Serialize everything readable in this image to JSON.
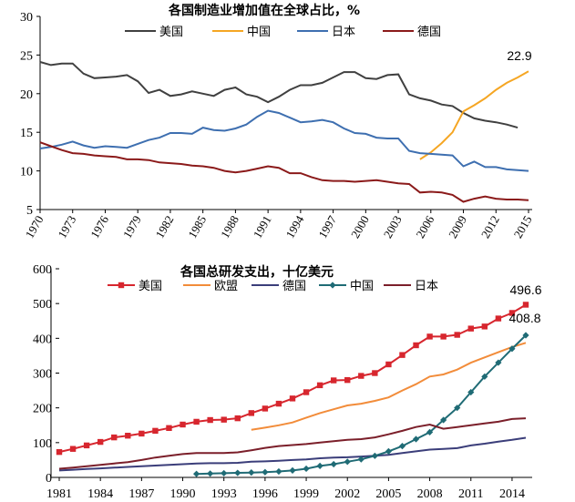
{
  "chart_data": [
    {
      "type": "line",
      "title": "各国制造业增加值在全球占比，%",
      "x": [
        1970,
        1971,
        1972,
        1973,
        1974,
        1975,
        1976,
        1977,
        1978,
        1979,
        1980,
        1981,
        1982,
        1983,
        1984,
        1985,
        1986,
        1987,
        1988,
        1989,
        1990,
        1991,
        1992,
        1993,
        1994,
        1995,
        1996,
        1997,
        1998,
        1999,
        2000,
        2001,
        2002,
        2003,
        2004,
        2005,
        2006,
        2007,
        2008,
        2009,
        2010,
        2011,
        2012,
        2013,
        2014,
        2015
      ],
      "x_ticks": [
        "1970",
        "1973",
        "1976",
        "1979",
        "1982",
        "1985",
        "1988",
        "1991",
        "1994",
        "1997",
        "2000",
        "2003",
        "2006",
        "2009",
        "2012",
        "2015"
      ],
      "ylim": [
        5,
        30
      ],
      "y_ticks": [
        "5",
        "10",
        "15",
        "20",
        "25",
        "30"
      ],
      "grid": false,
      "legend": "top",
      "annotation": "22.9",
      "series": [
        {
          "name": "美国",
          "color": "#404040",
          "values": [
            24.1,
            23.7,
            23.9,
            23.9,
            22.6,
            22.0,
            22.1,
            22.2,
            22.4,
            21.6,
            20.1,
            20.5,
            19.7,
            19.9,
            20.3,
            20.0,
            19.7,
            20.5,
            20.8,
            19.9,
            19.6,
            18.9,
            19.6,
            20.5,
            21.1,
            21.1,
            21.4,
            22.1,
            22.8,
            22.8,
            22.0,
            21.9,
            22.4,
            22.5,
            19.9,
            19.4,
            19.1,
            18.6,
            18.4,
            17.5,
            16.8,
            16.5,
            16.3,
            16.0,
            15.6,
            null
          ]
        },
        {
          "name": "中国",
          "color": "#F5A623",
          "values": [
            null,
            null,
            null,
            null,
            null,
            null,
            null,
            null,
            null,
            null,
            null,
            null,
            null,
            null,
            null,
            null,
            null,
            null,
            null,
            null,
            null,
            null,
            null,
            null,
            null,
            null,
            null,
            null,
            null,
            null,
            null,
            null,
            null,
            null,
            null,
            11.5,
            12.4,
            13.6,
            15.0,
            17.7,
            18.5,
            19.4,
            20.5,
            21.4,
            22.1,
            22.9
          ]
        },
        {
          "name": "日本",
          "color": "#3E6FB0",
          "values": [
            12.9,
            13.1,
            13.4,
            13.8,
            13.3,
            13.0,
            13.2,
            13.1,
            13.0,
            13.5,
            14.0,
            14.3,
            14.9,
            14.9,
            14.8,
            15.6,
            15.3,
            15.2,
            15.5,
            16.0,
            17.0,
            17.8,
            17.5,
            16.9,
            16.3,
            16.4,
            16.6,
            16.3,
            15.5,
            14.9,
            14.8,
            14.3,
            14.2,
            14.2,
            12.6,
            12.3,
            12.2,
            12.1,
            12.0,
            10.6,
            11.2,
            10.5,
            10.5,
            10.2,
            10.1,
            10.0
          ]
        },
        {
          "name": "德国",
          "color": "#8B1A1A",
          "values": [
            13.7,
            13.2,
            12.7,
            12.3,
            12.2,
            12.0,
            11.9,
            11.8,
            11.5,
            11.5,
            11.4,
            11.1,
            11.0,
            10.9,
            10.7,
            10.6,
            10.4,
            10.0,
            9.8,
            10.0,
            10.3,
            10.6,
            10.4,
            9.7,
            9.7,
            9.2,
            8.8,
            8.7,
            8.7,
            8.6,
            8.7,
            8.8,
            8.6,
            8.4,
            8.3,
            7.2,
            7.3,
            7.2,
            6.9,
            6.0,
            6.4,
            6.7,
            6.4,
            6.3,
            6.3,
            6.2
          ]
        }
      ]
    },
    {
      "type": "line",
      "title": "各国总研发支出，十亿美元",
      "x": [
        1981,
        1982,
        1983,
        1984,
        1985,
        1986,
        1987,
        1988,
        1989,
        1990,
        1991,
        1992,
        1993,
        1994,
        1995,
        1996,
        1997,
        1998,
        1999,
        2000,
        2001,
        2002,
        2003,
        2004,
        2005,
        2006,
        2007,
        2008,
        2009,
        2010,
        2011,
        2012,
        2013,
        2014,
        2015
      ],
      "x_ticks": [
        "1981",
        "1984",
        "1987",
        "1990",
        "1993",
        "1996",
        "1999",
        "2002",
        "2005",
        "2008",
        "2011",
        "2014"
      ],
      "ylim": [
        0,
        600
      ],
      "y_ticks": [
        "0",
        "100",
        "200",
        "300",
        "400",
        "500",
        "600"
      ],
      "grid": false,
      "legend": "top",
      "annotations": [
        "496.6",
        "408.8"
      ],
      "series": [
        {
          "name": "美国",
          "color": "#D7262E",
          "marker": "square",
          "values": [
            73,
            82,
            92,
            102,
            115,
            120,
            126,
            134,
            142,
            152,
            160,
            165,
            166,
            170,
            185,
            198,
            212,
            227,
            245,
            265,
            279,
            280,
            292,
            300,
            325,
            352,
            380,
            405,
            405,
            410,
            428,
            434,
            457,
            473,
            496.6
          ]
        },
        {
          "name": "欧盟",
          "color": "#F28C3A",
          "marker": "none",
          "values": [
            null,
            null,
            null,
            null,
            null,
            null,
            null,
            null,
            null,
            null,
            null,
            null,
            null,
            null,
            137,
            143,
            150,
            158,
            172,
            185,
            196,
            207,
            212,
            220,
            230,
            250,
            268,
            290,
            296,
            310,
            330,
            345,
            360,
            375,
            387
          ]
        },
        {
          "name": "德国",
          "color": "#3B3E7A",
          "marker": "none",
          "values": [
            20,
            22,
            24,
            26,
            28,
            30,
            32,
            34,
            36,
            38,
            40,
            41,
            41,
            42,
            45,
            46,
            48,
            50,
            52,
            55,
            57,
            58,
            60,
            62,
            65,
            70,
            75,
            80,
            82,
            84,
            92,
            97,
            103,
            108,
            114
          ]
        },
        {
          "name": "中国",
          "color": "#1F6B75",
          "marker": "diamond",
          "values": [
            null,
            null,
            null,
            null,
            null,
            null,
            null,
            null,
            null,
            null,
            10,
            11,
            12,
            13,
            14,
            15,
            17,
            20,
            25,
            33,
            38,
            45,
            52,
            62,
            75,
            90,
            110,
            130,
            165,
            200,
            245,
            290,
            330,
            370,
            408.8
          ]
        },
        {
          "name": "日本",
          "color": "#7B1F2A",
          "marker": "none",
          "values": [
            25,
            28,
            32,
            36,
            40,
            44,
            50,
            57,
            62,
            67,
            70,
            70,
            70,
            72,
            78,
            85,
            90,
            93,
            96,
            100,
            104,
            108,
            110,
            115,
            124,
            134,
            145,
            152,
            140,
            145,
            150,
            155,
            160,
            168,
            170
          ]
        }
      ]
    }
  ]
}
